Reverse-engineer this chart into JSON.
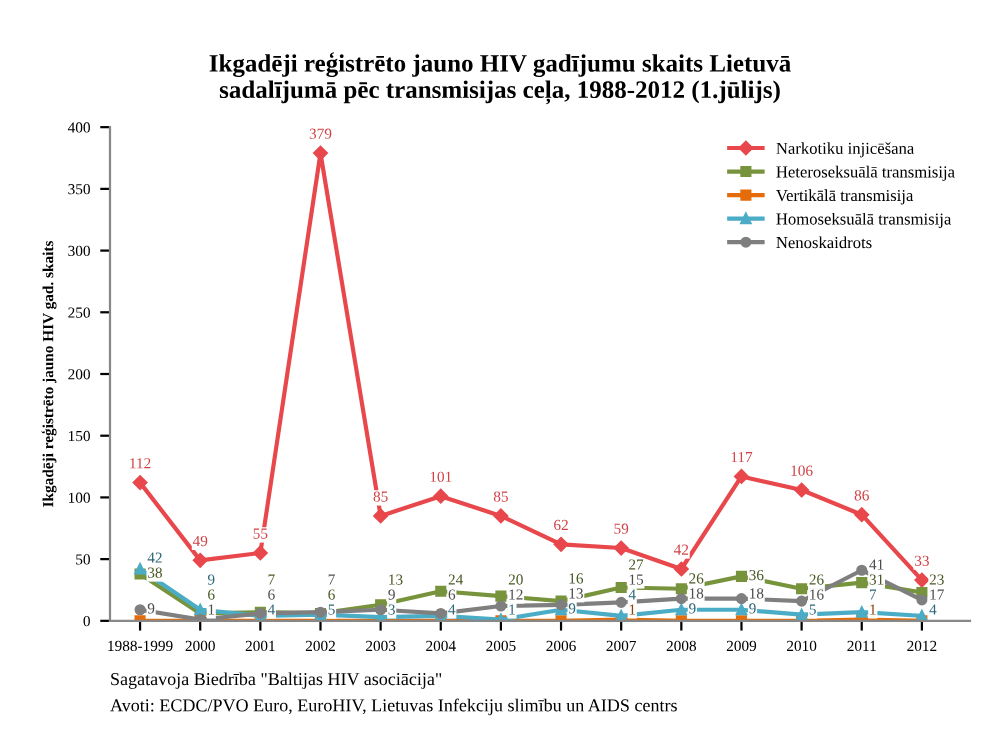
{
  "chart_data": {
    "type": "line",
    "title": "Ikgadēji reģistrēto jauno HIV gadījumu skaits Lietuvā\nsadalījumā pēc transmisijas ceļa, 1988-2012 (1.jūlijs)",
    "ylabel": "Ikgadēji reģistrēto jauno HIV gad. skaits",
    "categories": [
      "1988-1999",
      "2000",
      "2001",
      "2002",
      "2003",
      "2004",
      "2005",
      "2006",
      "2007",
      "2008",
      "2009",
      "2010",
      "2011",
      "2012"
    ],
    "series": [
      {
        "name": "Narkotiku injicēšana",
        "color": "#e8474b",
        "marker": "diamond",
        "values": [
          112,
          49,
          55,
          379,
          85,
          101,
          85,
          62,
          59,
          42,
          117,
          106,
          86,
          33
        ],
        "value_labels": [
          "112",
          "49",
          "55",
          "379",
          "85",
          "101",
          "85",
          "62",
          "59",
          "42",
          "117",
          "106",
          "86",
          "33"
        ]
      },
      {
        "name": "Heteroseksuālā transmisija",
        "color": "#77933c",
        "marker": "square",
        "values": [
          38,
          6,
          7,
          6,
          13,
          24,
          20,
          16,
          27,
          26,
          36,
          26,
          31,
          23
        ],
        "value_labels": [
          "38",
          "6",
          "7",
          "6",
          "13",
          "24",
          "20",
          "16",
          "27",
          "26",
          "36",
          "26",
          "31",
          "23"
        ]
      },
      {
        "name": "Vertikālā transmisija",
        "color": "#e46c0a",
        "marker": "square",
        "values": [
          0,
          0,
          0,
          0,
          0,
          0,
          0,
          0,
          1,
          0,
          0,
          0,
          1,
          0
        ],
        "value_labels": [
          null,
          null,
          null,
          null,
          null,
          null,
          null,
          null,
          "1",
          null,
          null,
          null,
          "1",
          null
        ]
      },
      {
        "name": "Homoseksuālā transmisija",
        "color": "#4bacc6",
        "marker": "triangle",
        "values": [
          42,
          9,
          4,
          5,
          3,
          4,
          1,
          9,
          4,
          9,
          9,
          5,
          7,
          4
        ],
        "value_labels": [
          "42",
          "9",
          "4",
          "5",
          "3",
          "4",
          "1",
          "9",
          "4",
          "9",
          "9",
          "5",
          "7",
          "4"
        ]
      },
      {
        "name": "Nenoskaidrots",
        "color": "#7f7f7f",
        "marker": "circle",
        "values": [
          9,
          1,
          6,
          7,
          9,
          6,
          12,
          13,
          15,
          18,
          18,
          16,
          41,
          17
        ],
        "value_labels": [
          "9",
          "1",
          "6",
          "7",
          "9",
          "6",
          "12",
          "13",
          "15",
          "18",
          "18",
          "16",
          "41",
          "17"
        ]
      }
    ],
    "ylim": [
      0,
      400
    ],
    "yticks": [
      0,
      50,
      100,
      150,
      200,
      250,
      300,
      350,
      400
    ],
    "grid": false,
    "legend": "top right",
    "annotations": [
      "Sagatavoja Biedrība \"Baltijas HIV asociācija\"",
      "Avoti: ECDC/PVO Euro, EuroHIV, Lietuvas Infekciju slimību un AIDS centrs"
    ]
  }
}
